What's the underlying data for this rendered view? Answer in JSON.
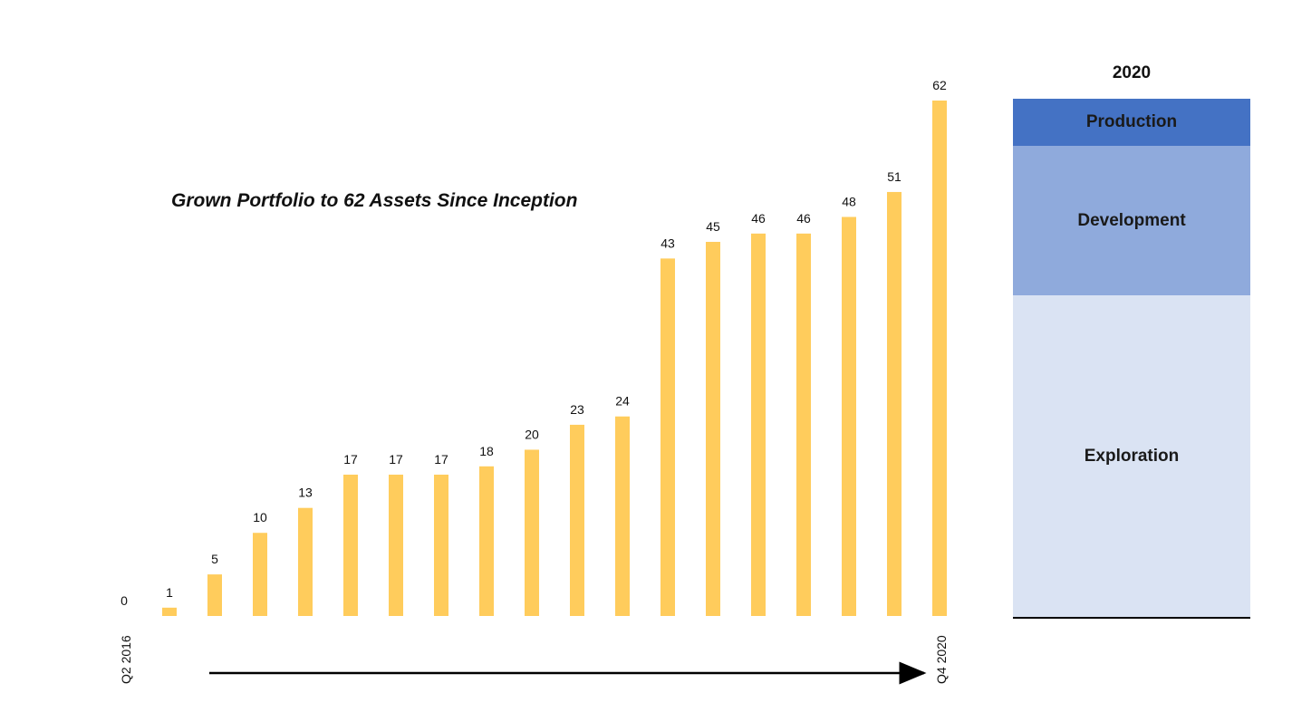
{
  "chart_data": {
    "type": "bar",
    "title": "Grown Portfolio to 62 Assets Since Inception",
    "values": [
      0,
      1,
      5,
      10,
      13,
      17,
      17,
      17,
      18,
      20,
      23,
      24,
      43,
      45,
      46,
      46,
      48,
      51,
      62
    ],
    "data_labels": [
      "0",
      "1",
      "5",
      "10",
      "13",
      "17",
      "17",
      "17",
      "18",
      "20",
      "23",
      "24",
      "43",
      "45",
      "46",
      "46",
      "48",
      "51",
      "62"
    ],
    "x_start_label": "Q2 2016",
    "x_end_label": "Q4 2020",
    "ylim": [
      0,
      62
    ],
    "grid": false,
    "bar_color": "#FFCC5C",
    "arrow_color": "#000000"
  },
  "composition": {
    "year": "2020",
    "segments": [
      {
        "label": "Production",
        "color": "#4472C4"
      },
      {
        "label": "Development",
        "color": "#8FAADC"
      },
      {
        "label": "Exploration",
        "color": "#DAE3F3"
      }
    ]
  }
}
